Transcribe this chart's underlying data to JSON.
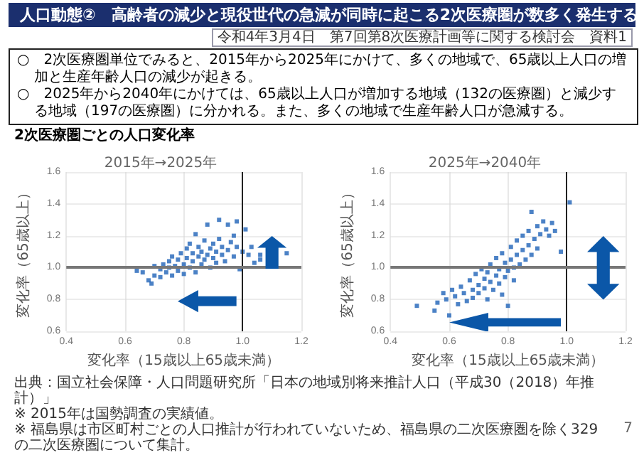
{
  "chart_data": [
    {
      "type": "other",
      "title": "人口動態②　高齢者の減少と現役世代の急減が同時に起こる2次医療圏が数多く発生する",
      "subtitle": "2次医療圏ごとの人口変化率",
      "annotations": [
        "令和4年3月4日　第7回第8次医療計画等に関する検討会　資料1",
        "○　2次医療圏単位でみると、2015年から2025年にかけて、多くの地域で、65歳以上人口の増加と生産年齢人口の減少が起きる。",
        "○　2025年から2040年にかけては、65歳以上人口が増加する地域（132の医療圏）と減少する地域（197の医療圏）に分かれる。また、多くの地域で生産年齢人口が急減する。",
        "出典：国立社会保障・人口問題研究所「日本の地域別将来推計人口（平成30（2018）年推計）」",
        "※ 2015年は国勢調査の実績値。",
        "※ 福島県は市区町村ごとの人口推計が行われていないため、福島県の二次医療圏を除く329の二次医療圏について集計。",
        "7"
      ]
    },
    {
      "type": "scatter",
      "title": "2015年→2025年",
      "xlabel": "変化率（15歳以上65歳未満）",
      "ylabel": "変化率（65歳以上）",
      "xlim": [
        0.4,
        1.2
      ],
      "ylim": [
        0.6,
        1.6
      ],
      "xticks": [
        0.4,
        0.6,
        0.8,
        {
          "value": 1,
          "label": "1.0"
        },
        1.2
      ],
      "yticks": [
        0.6,
        0.8,
        {
          "value": 1,
          "label": "1.0"
        },
        1.2,
        1.4,
        1.6
      ],
      "grid": true,
      "marker": "square",
      "ref_lines": [
        {
          "axis": "x",
          "value": 1,
          "color": "#222222"
        },
        {
          "axis": "y",
          "value": 1,
          "color": "#777777"
        }
      ],
      "series": [
        {
          "color": "#1f63b8",
          "x": [
            0.64,
            0.66,
            0.68,
            0.69,
            0.7,
            0.7,
            0.72,
            0.72,
            0.73,
            0.74,
            0.75,
            0.75,
            0.76,
            0.76,
            0.77,
            0.78,
            0.78,
            0.79,
            0.8,
            0.8,
            0.81,
            0.81,
            0.82,
            0.82,
            0.83,
            0.83,
            0.84,
            0.84,
            0.85,
            0.85,
            0.86,
            0.86,
            0.87,
            0.87,
            0.88,
            0.88,
            0.89,
            0.89,
            0.9,
            0.9,
            0.91,
            0.91,
            0.92,
            0.92,
            0.93,
            0.93,
            0.94,
            0.95,
            0.95,
            0.96,
            0.97,
            0.97,
            0.98,
            0.98,
            0.99,
            1.0,
            1.01,
            1.02,
            1.03,
            1.04,
            1.06,
            1.06,
            1.15
          ],
          "values": [
            0.98,
            0.97,
            0.92,
            0.9,
            0.95,
            1.01,
            0.99,
            0.94,
            1.02,
            0.97,
            1.0,
            1.04,
            0.95,
            1.07,
            1.01,
            0.98,
            1.05,
            1.09,
            1.02,
            0.96,
            1.06,
            1.12,
            1.0,
            1.15,
            1.04,
            1.09,
            0.97,
            1.21,
            1.07,
            1.13,
            1.02,
            1.1,
            1.05,
            1.17,
            1.08,
            1.27,
            1.12,
            1.0,
            1.06,
            1.15,
            1.1,
            1.03,
            1.3,
            1.18,
            1.08,
            1.13,
            1.04,
            1.11,
            1.27,
            1.16,
            1.07,
            1.2,
            1.13,
            1.29,
            0.99,
            1.1,
            1.24,
            1.08,
            1.13,
            1.03,
            1.08,
            1.05,
            1.09
          ]
        }
      ]
    },
    {
      "type": "scatter",
      "title": "2025年→2040年",
      "xlabel": "変化率（15歳以上65歳未満）",
      "ylabel": "変化率（65歳以上）",
      "xlim": [
        0.4,
        1.2
      ],
      "ylim": [
        0.6,
        1.6
      ],
      "xticks": [
        0.4,
        0.6,
        0.8,
        {
          "value": 1,
          "label": "1.0"
        },
        1.2
      ],
      "yticks": [
        0.6,
        0.8,
        {
          "value": 1,
          "label": "1.0"
        },
        1.2,
        1.4,
        1.6
      ],
      "grid": true,
      "marker": "square",
      "ref_lines": [
        {
          "axis": "x",
          "value": 1,
          "color": "#222222"
        },
        {
          "axis": "y",
          "value": 1,
          "color": "#777777"
        }
      ],
      "series": [
        {
          "color": "#1f63b8",
          "x": [
            0.49,
            0.55,
            0.56,
            0.58,
            0.59,
            0.6,
            0.61,
            0.62,
            0.63,
            0.64,
            0.65,
            0.66,
            0.67,
            0.68,
            0.68,
            0.69,
            0.7,
            0.7,
            0.71,
            0.72,
            0.72,
            0.73,
            0.73,
            0.74,
            0.74,
            0.75,
            0.76,
            0.76,
            0.77,
            0.77,
            0.78,
            0.78,
            0.79,
            0.79,
            0.8,
            0.8,
            0.81,
            0.81,
            0.82,
            0.82,
            0.83,
            0.83,
            0.84,
            0.85,
            0.85,
            0.86,
            0.87,
            0.87,
            0.88,
            0.88,
            0.89,
            0.9,
            0.9,
            0.91,
            0.92,
            0.93,
            0.94,
            0.95,
            0.96,
            0.98,
            1.01
          ],
          "values": [
            0.76,
            0.73,
            0.78,
            0.84,
            0.8,
            0.7,
            0.86,
            0.82,
            0.77,
            0.88,
            0.84,
            0.79,
            0.92,
            0.86,
            0.81,
            0.96,
            0.89,
            0.84,
            0.99,
            0.93,
            0.87,
            0.97,
            0.8,
            1.02,
            0.91,
            0.86,
            1.06,
            0.95,
            0.99,
            0.9,
            1.09,
            0.83,
            1.03,
            0.94,
            0.98,
            0.76,
            1.13,
            1.05,
            1.0,
            0.92,
            1.17,
            1.08,
            1.02,
            1.2,
            1.11,
            1.05,
            1.23,
            1.14,
            1.35,
            1.08,
            1.18,
            1.26,
            1.12,
            1.21,
            1.29,
            1.24,
            1.2,
            1.28,
            1.23,
            1.1,
            1.41
          ]
        }
      ]
    }
  ]
}
